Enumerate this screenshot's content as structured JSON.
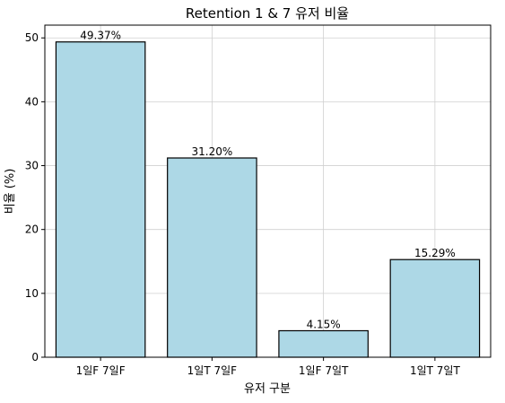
{
  "chart_data": {
    "type": "bar",
    "title": "Retention 1 & 7 유저 비율",
    "xlabel": "유저 구분",
    "ylabel": "비율 (%)",
    "categories": [
      "1일F 7일F",
      "1일T 7일F",
      "1일F 7일T",
      "1일T 7일T"
    ],
    "values": [
      49.37,
      31.2,
      4.15,
      15.29
    ],
    "data_labels": [
      "49.37%",
      "31.20%",
      "4.15%",
      "15.29%"
    ],
    "ylim": [
      0,
      52
    ],
    "yticks": [
      0,
      10,
      20,
      30,
      40,
      50
    ],
    "grid": true,
    "colors": {
      "bar_fill": "#add8e6",
      "bar_edge": "#000000",
      "grid": "#d0d0d0"
    }
  }
}
